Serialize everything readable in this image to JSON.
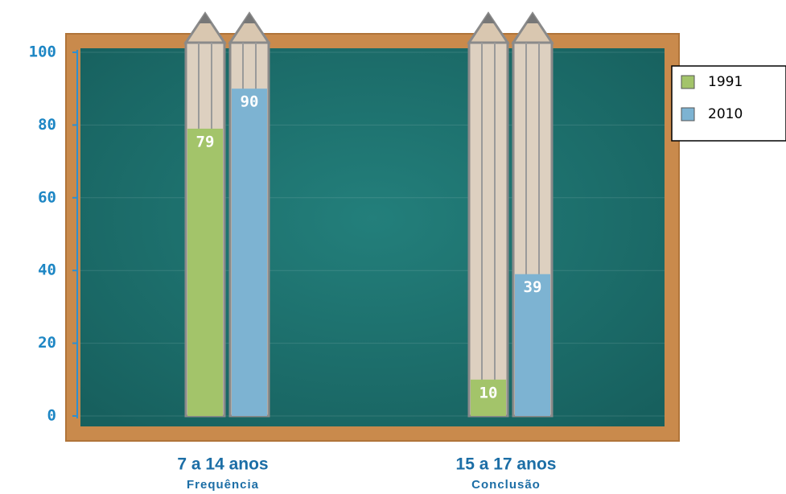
{
  "chart_data": {
    "type": "bar",
    "categories": [
      "7 a 14 anos",
      "15 a 17 anos"
    ],
    "category_sublabels": [
      "Frequência",
      "Conclusão"
    ],
    "series": [
      {
        "name": "1991",
        "color": "#a3c46a",
        "values": [
          79,
          10
        ]
      },
      {
        "name": "2010",
        "color": "#7db3d2",
        "values": [
          90,
          39
        ]
      }
    ],
    "ylim": [
      0,
      100
    ],
    "yticks": [
      0,
      20,
      40,
      60,
      80,
      100
    ],
    "grid": true,
    "legend": "right"
  }
}
